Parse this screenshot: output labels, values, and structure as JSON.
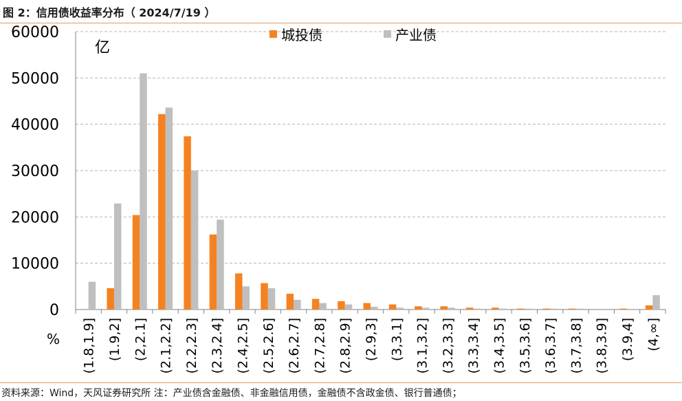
{
  "header": {
    "title": "图 2：信用债收益率分布（ 2024/7/19 ）"
  },
  "footer": {
    "source": "资料来源：Wind，天风证券研究所  注：产业债含金融债、非金融信用债，金融债不含政金债、银行普通债；"
  },
  "chart_data": {
    "type": "bar",
    "title": "",
    "unit_label": "亿",
    "xlabel": "%",
    "ylabel": "",
    "ylim": [
      0,
      60000
    ],
    "yticks": [
      0,
      10000,
      20000,
      30000,
      40000,
      50000,
      60000
    ],
    "grid": true,
    "legend_position": "top",
    "categories": [
      "(1.8,1.9]",
      "(1.9,2]",
      "(2,2.1]",
      "(2.1,2.2]",
      "(2.2,2.3]",
      "(2.3,2.4]",
      "(2.4,2.5]",
      "(2.5,2.6]",
      "(2.6,2.7]",
      "(2.7,2.8]",
      "(2.8,2.9]",
      "(2.9,3]",
      "(3,3.1]",
      "(3.1,3.2]",
      "(3.2,3.3]",
      "(3.3,3.4]",
      "(3.4,3.5]",
      "(3.5,3.6]",
      "(3.6,3.7]",
      "(3.7,3.8]",
      "(3.8,3.9]",
      "(3.9,4]",
      "(4,∞]"
    ],
    "series": [
      {
        "name": "城投债",
        "color": "#f58220",
        "values": [
          0,
          4600,
          20400,
          42200,
          37400,
          16200,
          7800,
          5700,
          3400,
          2300,
          1800,
          1400,
          1100,
          700,
          700,
          400,
          400,
          200,
          200,
          200,
          0,
          200,
          900
        ]
      },
      {
        "name": "产业债",
        "color": "#bfbfbf",
        "values": [
          6000,
          22900,
          51000,
          43600,
          30000,
          19400,
          5000,
          4600,
          2100,
          1400,
          1100,
          600,
          400,
          400,
          400,
          200,
          200,
          200,
          200,
          200,
          0,
          0,
          3100
        ]
      }
    ]
  }
}
